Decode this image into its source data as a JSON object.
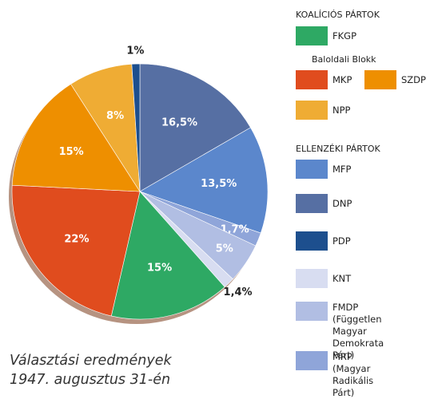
{
  "chart_data": {
    "type": "pie",
    "caption": "Választási eredmények 1947. augusztus 31-én",
    "legend_headings": [
      "KOALÍCIÓS PÁRTOK",
      "Baloldali Blokk",
      "ELLENZÉKI PÁRTOK"
    ],
    "categories": [
      "DNP",
      "MFP",
      "MRP\n(Magyar Radikális\nPárt)",
      "FMDP\n(Független Magyar\nDemokrata Párt)",
      "KNT",
      "FKGP",
      "MKP",
      "SZDP",
      "NPP",
      "PDP"
    ],
    "values": [
      16.5,
      13.5,
      1.7,
      5,
      1.4,
      15,
      22,
      15,
      8,
      1
    ],
    "value_labels": [
      "16,5%",
      "13,5%",
      "1,7%",
      "5%",
      "1,4%",
      "15%",
      "22%",
      "15%",
      "8%",
      "1%"
    ],
    "colors": [
      "#566fa3",
      "#5b87cc",
      "#8fa5d9",
      "#b1bee3",
      "#d8ddf1",
      "#2ea964",
      "#e04c1e",
      "#ee8f00",
      "#efac34",
      "#1d4f8e"
    ]
  }
}
